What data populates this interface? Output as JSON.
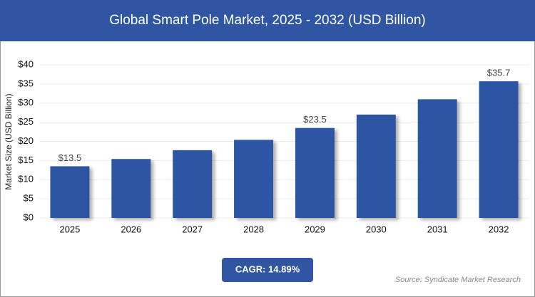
{
  "chart_data": {
    "type": "bar",
    "title": "Global Smart Pole Market, 2025 - 2032 (USD Billion)",
    "y_label": "Market Size (USD Billion)",
    "categories": [
      "2025",
      "2026",
      "2027",
      "2028",
      "2029",
      "2030",
      "2031",
      "2032"
    ],
    "values": [
      13.5,
      15.4,
      17.7,
      20.4,
      23.5,
      27.0,
      31.0,
      35.7
    ],
    "value_labels": [
      "$13.5",
      null,
      null,
      null,
      "$23.5",
      null,
      null,
      "$35.7"
    ],
    "color": "#2f55a3",
    "ylim": [
      0,
      40
    ],
    "yticks": [
      {
        "value": 0,
        "label": "$0"
      },
      {
        "value": 5,
        "label": "$5"
      },
      {
        "value": 10,
        "label": "$10"
      },
      {
        "value": 15,
        "label": "$15"
      },
      {
        "value": 20,
        "label": "$20"
      },
      {
        "value": 25,
        "label": "$25"
      },
      {
        "value": 30,
        "label": "$30"
      },
      {
        "value": 35,
        "label": "$35"
      },
      {
        "value": 40,
        "label": "$40"
      }
    ],
    "grid": true,
    "cagr": "CAGR: 14.89%",
    "source": "Source: Syndicate Market Research"
  }
}
